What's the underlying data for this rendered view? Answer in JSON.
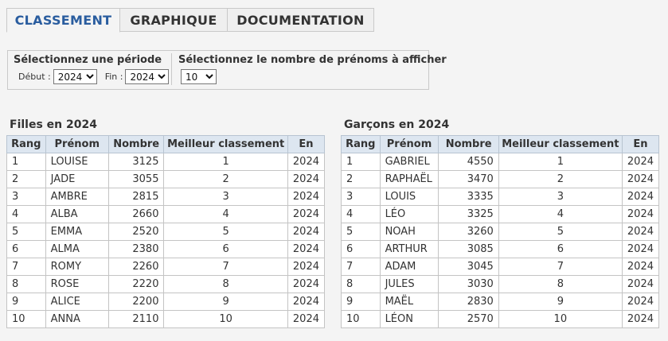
{
  "tabs": [
    {
      "label": "CLASSEMENT",
      "active": true
    },
    {
      "label": "GRAPHIQUE",
      "active": false
    },
    {
      "label": "DOCUMENTATION",
      "active": false
    }
  ],
  "filters": {
    "period_title": "Sélectionnez une période",
    "start_label": "Début :",
    "start_value": "2024",
    "end_label": "Fin :",
    "end_value": "2024",
    "count_title": "Sélectionnez le nombre de prénoms à afficher",
    "count_value": "10"
  },
  "columns": [
    "Rang",
    "Prénom",
    "Nombre",
    "Meilleur classement",
    "En"
  ],
  "girls": {
    "title": "Filles en 2024",
    "rows": [
      [
        "1",
        "LOUISE",
        "3125",
        "1",
        "2024"
      ],
      [
        "2",
        "JADE",
        "3055",
        "2",
        "2024"
      ],
      [
        "3",
        "AMBRE",
        "2815",
        "3",
        "2024"
      ],
      [
        "4",
        "ALBA",
        "2660",
        "4",
        "2024"
      ],
      [
        "5",
        "EMMA",
        "2520",
        "5",
        "2024"
      ],
      [
        "6",
        "ALMA",
        "2380",
        "6",
        "2024"
      ],
      [
        "7",
        "ROMY",
        "2260",
        "7",
        "2024"
      ],
      [
        "8",
        "ROSE",
        "2220",
        "8",
        "2024"
      ],
      [
        "9",
        "ALICE",
        "2200",
        "9",
        "2024"
      ],
      [
        "10",
        "ANNA",
        "2110",
        "10",
        "2024"
      ]
    ]
  },
  "boys": {
    "title": "Garçons en 2024",
    "rows": [
      [
        "1",
        "GABRIEL",
        "4550",
        "1",
        "2024"
      ],
      [
        "2",
        "RAPHAËL",
        "3470",
        "2",
        "2024"
      ],
      [
        "3",
        "LOUIS",
        "3335",
        "3",
        "2024"
      ],
      [
        "4",
        "LÉO",
        "3325",
        "4",
        "2024"
      ],
      [
        "5",
        "NOAH",
        "3260",
        "5",
        "2024"
      ],
      [
        "6",
        "ARTHUR",
        "3085",
        "6",
        "2024"
      ],
      [
        "7",
        "ADAM",
        "3045",
        "7",
        "2024"
      ],
      [
        "8",
        "JULES",
        "3030",
        "8",
        "2024"
      ],
      [
        "9",
        "MAËL",
        "2830",
        "9",
        "2024"
      ],
      [
        "10",
        "LÉON",
        "2570",
        "10",
        "2024"
      ]
    ]
  }
}
